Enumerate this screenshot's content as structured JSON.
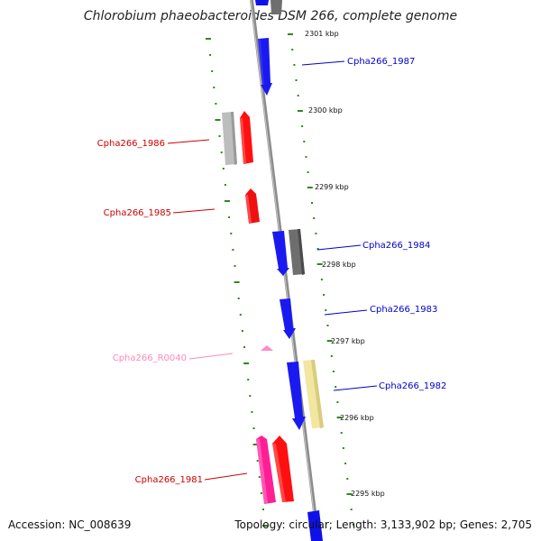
{
  "title": "Chlorobium phaeobacteroides DSM 266, complete genome",
  "accession_text": "Accession: NC_008639",
  "info_text": "Topology: circular; Length: 3,133,902 bp; Genes: 2,705",
  "colors": {
    "forward_cds": "#0000ee",
    "reverse_cds": "#ff0000",
    "other_cds": "#777777",
    "rna": "#ff66b3",
    "pseudo": "#eedd88",
    "gc_skew": "#2a8a1a",
    "backbone": "#888888",
    "label_forward": "#0000cc",
    "label_reverse": "#cc0000",
    "label_rna": "#ff88bb"
  },
  "ticks": [
    {
      "label": "2301 kbp"
    },
    {
      "label": "2300 kbp"
    },
    {
      "label": "2299 kbp"
    },
    {
      "label": "2298 kbp"
    },
    {
      "label": "2297 kbp"
    },
    {
      "label": "2296 kbp"
    },
    {
      "label": "2295 kbp"
    }
  ],
  "genes": [
    {
      "name": "Cpha266_1987",
      "strand": "forward",
      "type": "CDS"
    },
    {
      "name": "Cpha266_1986",
      "strand": "reverse",
      "type": "CDS"
    },
    {
      "name": "Cpha266_1985",
      "strand": "reverse",
      "type": "CDS"
    },
    {
      "name": "Cpha266_1984",
      "strand": "forward",
      "type": "CDS"
    },
    {
      "name": "Cpha266_1983",
      "strand": "forward",
      "type": "CDS"
    },
    {
      "name": "Cpha266_R0040",
      "strand": "reverse",
      "type": "rRNA"
    },
    {
      "name": "Cpha266_1982",
      "strand": "forward",
      "type": "CDS"
    },
    {
      "name": "Cpha266_1981",
      "strand": "reverse",
      "type": "CDS"
    }
  ]
}
